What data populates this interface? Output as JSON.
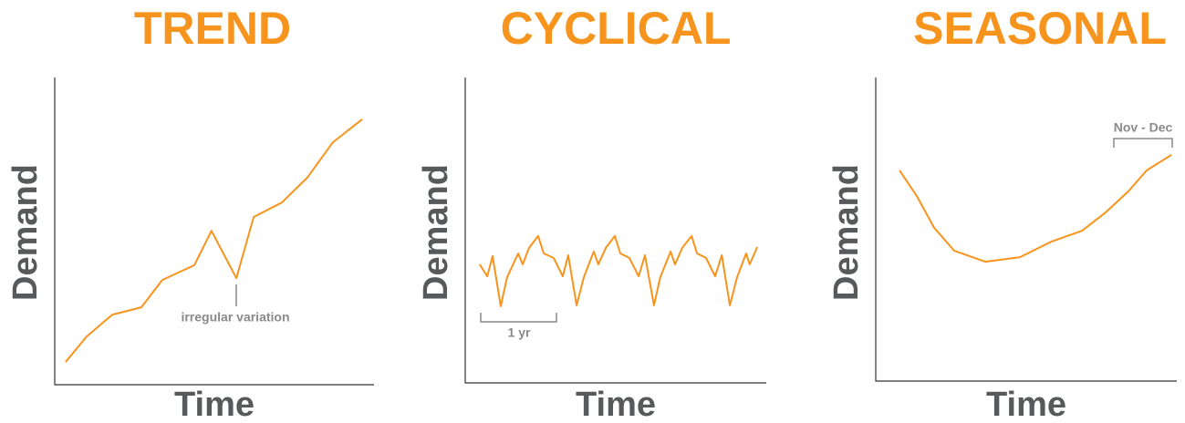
{
  "chart_data": [
    {
      "type": "line",
      "title": "TREND",
      "xlabel": "Time",
      "ylabel": "Demand",
      "color": "#f7941d",
      "xlim": [
        0,
        100
      ],
      "ylim": [
        0,
        100
      ],
      "x": [
        3.4,
        10,
        18,
        27.1,
        33.7,
        43.7,
        49.1,
        56.9,
        62.3,
        71.1,
        79.1,
        87.1,
        96.3
      ],
      "values": [
        7.4,
        15.7,
        22.8,
        25.2,
        34.1,
        38.9,
        50.1,
        34.7,
        54.6,
        59.3,
        67.4,
        78.9,
        86.4
      ],
      "annotation": "irregular variation"
    },
    {
      "type": "line",
      "title": "CYCLICAL",
      "xlabel": "Time",
      "ylabel": "Demand",
      "color": "#f7941d",
      "xlim": [
        0,
        100
      ],
      "ylim": [
        0,
        100
      ],
      "x": [
        4.8,
        7.3,
        9.1,
        11.8,
        13.9,
        17.6,
        19.1,
        21.2,
        24.2,
        26.1,
        29.4,
        32.4,
        34.2,
        37,
        39.4,
        42.7,
        44.2,
        46.7,
        49.7,
        51.5,
        54.5,
        57.6,
        59.7,
        62.7,
        64.8,
        68.2,
        69.7,
        72.1,
        75.2,
        77,
        80,
        83,
        85.2,
        87.9,
        90.3,
        93.3,
        94.5,
        97
      ],
      "values": [
        38.8,
        34.9,
        41.5,
        25.1,
        34.6,
        42.4,
        38.8,
        44.2,
        48.1,
        42.4,
        40.9,
        34.9,
        41.8,
        25.4,
        34.6,
        43,
        38.8,
        44.2,
        48.1,
        42.4,
        40.9,
        34.9,
        41.8,
        25.4,
        34.6,
        43,
        38.8,
        44.2,
        48.1,
        42.4,
        40.9,
        34.9,
        41.8,
        25.4,
        34.6,
        42.4,
        38.8,
        44.5
      ],
      "annotation": "1 yr"
    },
    {
      "type": "line",
      "title": "SEASONAL",
      "xlabel": "Time",
      "ylabel": "Demand",
      "color": "#f7941d",
      "xlim": [
        0,
        100
      ],
      "ylim": [
        0,
        100
      ],
      "x": [
        7.9,
        13.6,
        19.4,
        26.1,
        36.4,
        47.9,
        58.2,
        68.5,
        76.4,
        83.9,
        90,
        98.2
      ],
      "values": [
        69.4,
        61,
        50.5,
        42.9,
        39.3,
        40.8,
        45.9,
        49.5,
        55.6,
        62.5,
        69.4,
        74.5
      ],
      "annotation": "Nov - Dec"
    }
  ]
}
